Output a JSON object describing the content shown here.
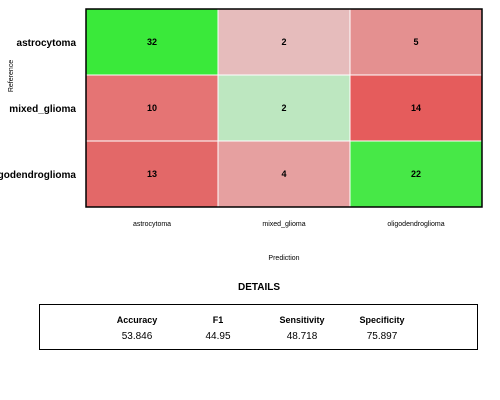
{
  "chart_data": {
    "type": "heatmap",
    "xlabel": "Prediction",
    "ylabel": "Reference",
    "rows": [
      "astrocytoma",
      "mixed_glioma",
      "oligodendroglioma"
    ],
    "columns": [
      "astrocytoma",
      "mixed_glioma",
      "oligodendroglioma"
    ],
    "values": [
      [
        32,
        2,
        5
      ],
      [
        10,
        2,
        14
      ],
      [
        13,
        4,
        22
      ]
    ],
    "colors": {
      "diagonal": "#3de83d",
      "diagonal_low": "#bfe6c0",
      "off_diagonal": "#e45d5d",
      "off_diagonal_low": "#e8bcbc"
    },
    "cell_colors": [
      [
        "#3ae93a",
        "#e6bcbc",
        "#e49090"
      ],
      [
        "#e57474",
        "#bde7c0",
        "#e55c5c"
      ],
      [
        "#e36868",
        "#e6a0a0",
        "#47e847"
      ]
    ]
  },
  "details": {
    "title": "DETAILS",
    "metrics": [
      {
        "label": "Accuracy",
        "value": "53.846"
      },
      {
        "label": "F1",
        "value": "44.95"
      },
      {
        "label": "Sensitivity",
        "value": "48.718"
      },
      {
        "label": "Specificity",
        "value": "75.897"
      }
    ]
  }
}
